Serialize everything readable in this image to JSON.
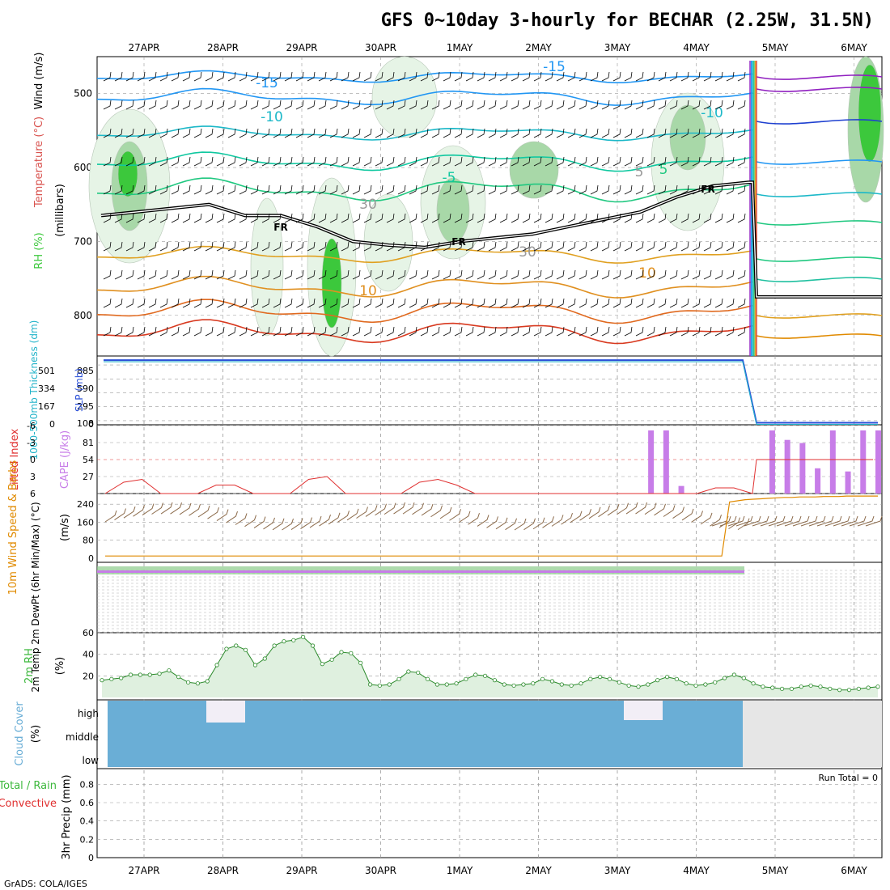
{
  "title": "GFS 0~10day 3-hourly for BECHAR (2.25W, 31.5N)",
  "credit": "GrADS: COLA/IGES",
  "run_total": "Run Total = 0",
  "colors": {
    "grid": "#9a9a9a",
    "rh_fill_dark": "#3cc83c",
    "rh_fill_mid": "#a8d8a8",
    "rh_fill_light": "#e6f4e6",
    "cloud": "#6aaed6",
    "cloud_missing": "#e6e6e6",
    "cape_bar": "#c77de8",
    "lifted_index": "#e03030",
    "wind_barb": "#8b6a4a",
    "wind_speed": "#e08a00",
    "slp": "#2a4fd8",
    "thickness": "#21b3c9",
    "freezing": "#000000"
  },
  "chart_data": [
    {
      "type": "line",
      "panel": "upper-air cross-section",
      "x_dates": [
        "27APR",
        "28APR",
        "29APR",
        "30APR",
        "1MAY",
        "2MAY",
        "3MAY",
        "4MAY",
        "5MAY",
        "6MAY"
      ],
      "ylabel": "(millibars)",
      "side_labels": [
        "RH (%)",
        "Temperature (°C)",
        "Wind (m/s)"
      ],
      "y_ticks": [
        500,
        600,
        700,
        800
      ],
      "ylim": [
        450,
        855
      ],
      "reversed_axis": true,
      "freezing_label": "FR",
      "isotherm_labels": [
        "-15",
        "-15",
        "-10",
        "-10",
        "-5",
        "5",
        "5",
        "10",
        "10",
        "30",
        "30"
      ],
      "freezing_level_mb": [
        665,
        660,
        655,
        650,
        665,
        665,
        680,
        700,
        705,
        708,
        700,
        695,
        690,
        680,
        670,
        660,
        640,
        625,
        620,
        775
      ]
    },
    {
      "type": "line",
      "panel": "thickness / slp",
      "ylabel_left": "1000-500mb Thickness (dm)",
      "ylabel_right": "SLP (mb)",
      "y_ticks_left": [
        "501",
        "334",
        "167",
        "0"
      ],
      "y_ticks_right": [
        "885",
        "590",
        "295",
        "0"
      ],
      "top_right_label": "108",
      "series": [
        {
          "values_fraction": [
            0.94,
            0.94,
            0.94,
            0.94,
            0.94,
            0.94,
            0.94,
            0.94,
            0.94,
            0.94,
            0.94,
            0.94,
            0.94,
            0.94,
            0.94,
            0.94,
            0.94,
            0.94,
            0.03,
            0.03,
            0.03
          ]
        }
      ]
    },
    {
      "type": "bar",
      "panel": "cape / lifted index",
      "ylabel_left": "Lifted Index",
      "ylabel_right": "CAPE (J/kg)",
      "y_ticks_left": [
        "-6",
        "-3",
        "0",
        "3",
        "6"
      ],
      "y_ticks_right": [
        "81",
        "54",
        "27"
      ],
      "cape_values": [
        0,
        0,
        0,
        0,
        0,
        0,
        0,
        0,
        0,
        0,
        0,
        0,
        0,
        0,
        0,
        0,
        0,
        0,
        0,
        0,
        0,
        0,
        0,
        0,
        0,
        0,
        0,
        0,
        0,
        0,
        0,
        0,
        0,
        0,
        0,
        0,
        100,
        100,
        12,
        0,
        0,
        0,
        0,
        0,
        100,
        85,
        80,
        40,
        100,
        35,
        100,
        100
      ],
      "lifted_index_values": [
        6,
        4,
        3.5,
        6,
        6,
        6,
        4.5,
        4.5,
        6,
        6,
        6,
        3.5,
        3,
        6,
        6,
        6,
        6,
        4,
        3.5,
        4.5,
        6,
        6,
        6,
        6,
        6,
        6,
        6,
        6,
        6,
        6,
        6,
        6,
        6,
        5,
        5,
        6,
        0,
        0,
        0,
        0,
        0,
        0,
        0,
        0,
        0,
        0,
        0,
        0,
        0
      ]
    },
    {
      "type": "line",
      "panel": "10m wind",
      "ylabel_left": "10m Wind Speed & Barbs",
      "ylabel_right": "(m/s)",
      "y_ticks": [
        "240",
        "160",
        "80",
        "0"
      ],
      "ylim": [
        0,
        280
      ],
      "speed_values": [
        10,
        10,
        10,
        10,
        10,
        10,
        10,
        10,
        10,
        10,
        10,
        10,
        10,
        10,
        10,
        10,
        10,
        10,
        10,
        10,
        10,
        10,
        10,
        10,
        10,
        10,
        10,
        10,
        10,
        10,
        10,
        10,
        10,
        10,
        10,
        10,
        10,
        10,
        10,
        10,
        10,
        10,
        10,
        10,
        10,
        10,
        10,
        10,
        10,
        10,
        10,
        10,
        10,
        10,
        10,
        10,
        10,
        10,
        10,
        10,
        10,
        10,
        10,
        10,
        10,
        10,
        10,
        10,
        10,
        10,
        10,
        10,
        10,
        10,
        10,
        10,
        10,
        10,
        10,
        10,
        250,
        255,
        260,
        262,
        264,
        266,
        268,
        270,
        270,
        272,
        272,
        272,
        274,
        274,
        274,
        276,
        276,
        276,
        276,
        276
      ]
    },
    {
      "type": "line",
      "panel": "2m temperature",
      "ylabel": "2m Temp 2m DewPt (6hr Min/Max) (°C)"
    },
    {
      "type": "area",
      "panel": "2m rh",
      "ylabel_left": "2m RH",
      "ylabel_right": "(%)",
      "y_ticks": [
        "60",
        "40",
        "20"
      ],
      "ylim": [
        0,
        60
      ],
      "values": [
        16,
        17,
        18,
        21,
        21,
        21,
        22,
        25,
        19,
        14,
        13,
        15,
        30,
        45,
        48,
        44,
        30,
        36,
        48,
        52,
        53,
        56,
        48,
        31,
        35,
        42,
        41,
        32,
        12,
        11,
        12,
        17,
        24,
        23,
        17,
        12,
        12,
        13,
        17,
        21,
        20,
        16,
        12,
        11,
        12,
        13,
        17,
        15,
        12,
        11,
        13,
        17,
        19,
        17,
        14,
        11,
        10,
        12,
        16,
        19,
        17,
        13,
        11,
        12,
        14,
        18,
        21,
        18,
        13,
        10,
        9,
        8,
        8,
        10,
        11,
        10,
        8,
        7,
        7,
        8,
        9,
        10
      ]
    },
    {
      "type": "heatmap",
      "panel": "cloud cover",
      "ylabel_left": "Cloud Cover",
      "ylabel_right": "(%)",
      "rows": [
        "high",
        "middle",
        "low"
      ]
    },
    {
      "type": "bar",
      "panel": "3hr precip",
      "ylabel_left": "Total / Rain",
      "ylabel_left_2": "Convective",
      "ylabel_right": "3hr Precip (mm)",
      "y_ticks": [
        "0.8",
        "0.6",
        "0.4",
        "0.2",
        "0"
      ],
      "ylim": [
        0,
        0.9
      ],
      "values": []
    }
  ]
}
